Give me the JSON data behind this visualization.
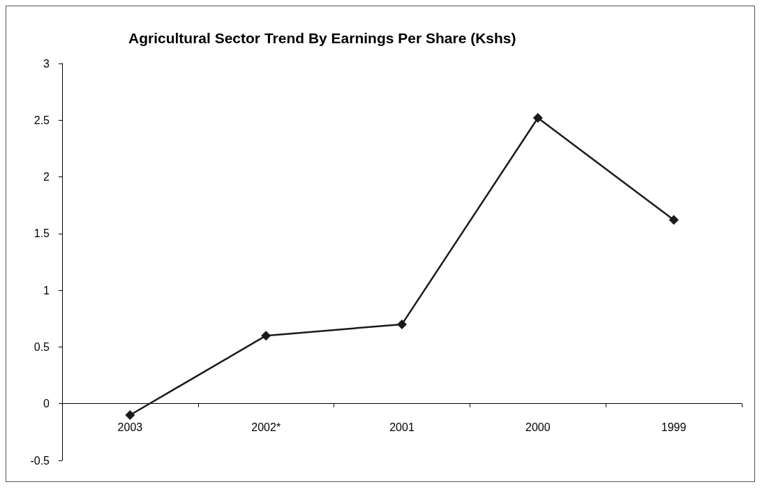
{
  "chart_data": {
    "type": "line",
    "title": "Agricultural Sector Trend By Earnings Per Share (Kshs)",
    "categories": [
      "2003",
      "2002*",
      "2001",
      "2000",
      "1999"
    ],
    "series": [
      {
        "color": "#1a1a1a",
        "values": [
          -0.1,
          0.6,
          0.7,
          2.52,
          1.62
        ]
      }
    ],
    "ylim": [
      -0.5,
      3
    ],
    "yticks": [
      -0.5,
      0,
      0.5,
      1,
      1.5,
      2,
      2.5,
      3
    ],
    "marker": "diamond",
    "line_style": "solid"
  }
}
